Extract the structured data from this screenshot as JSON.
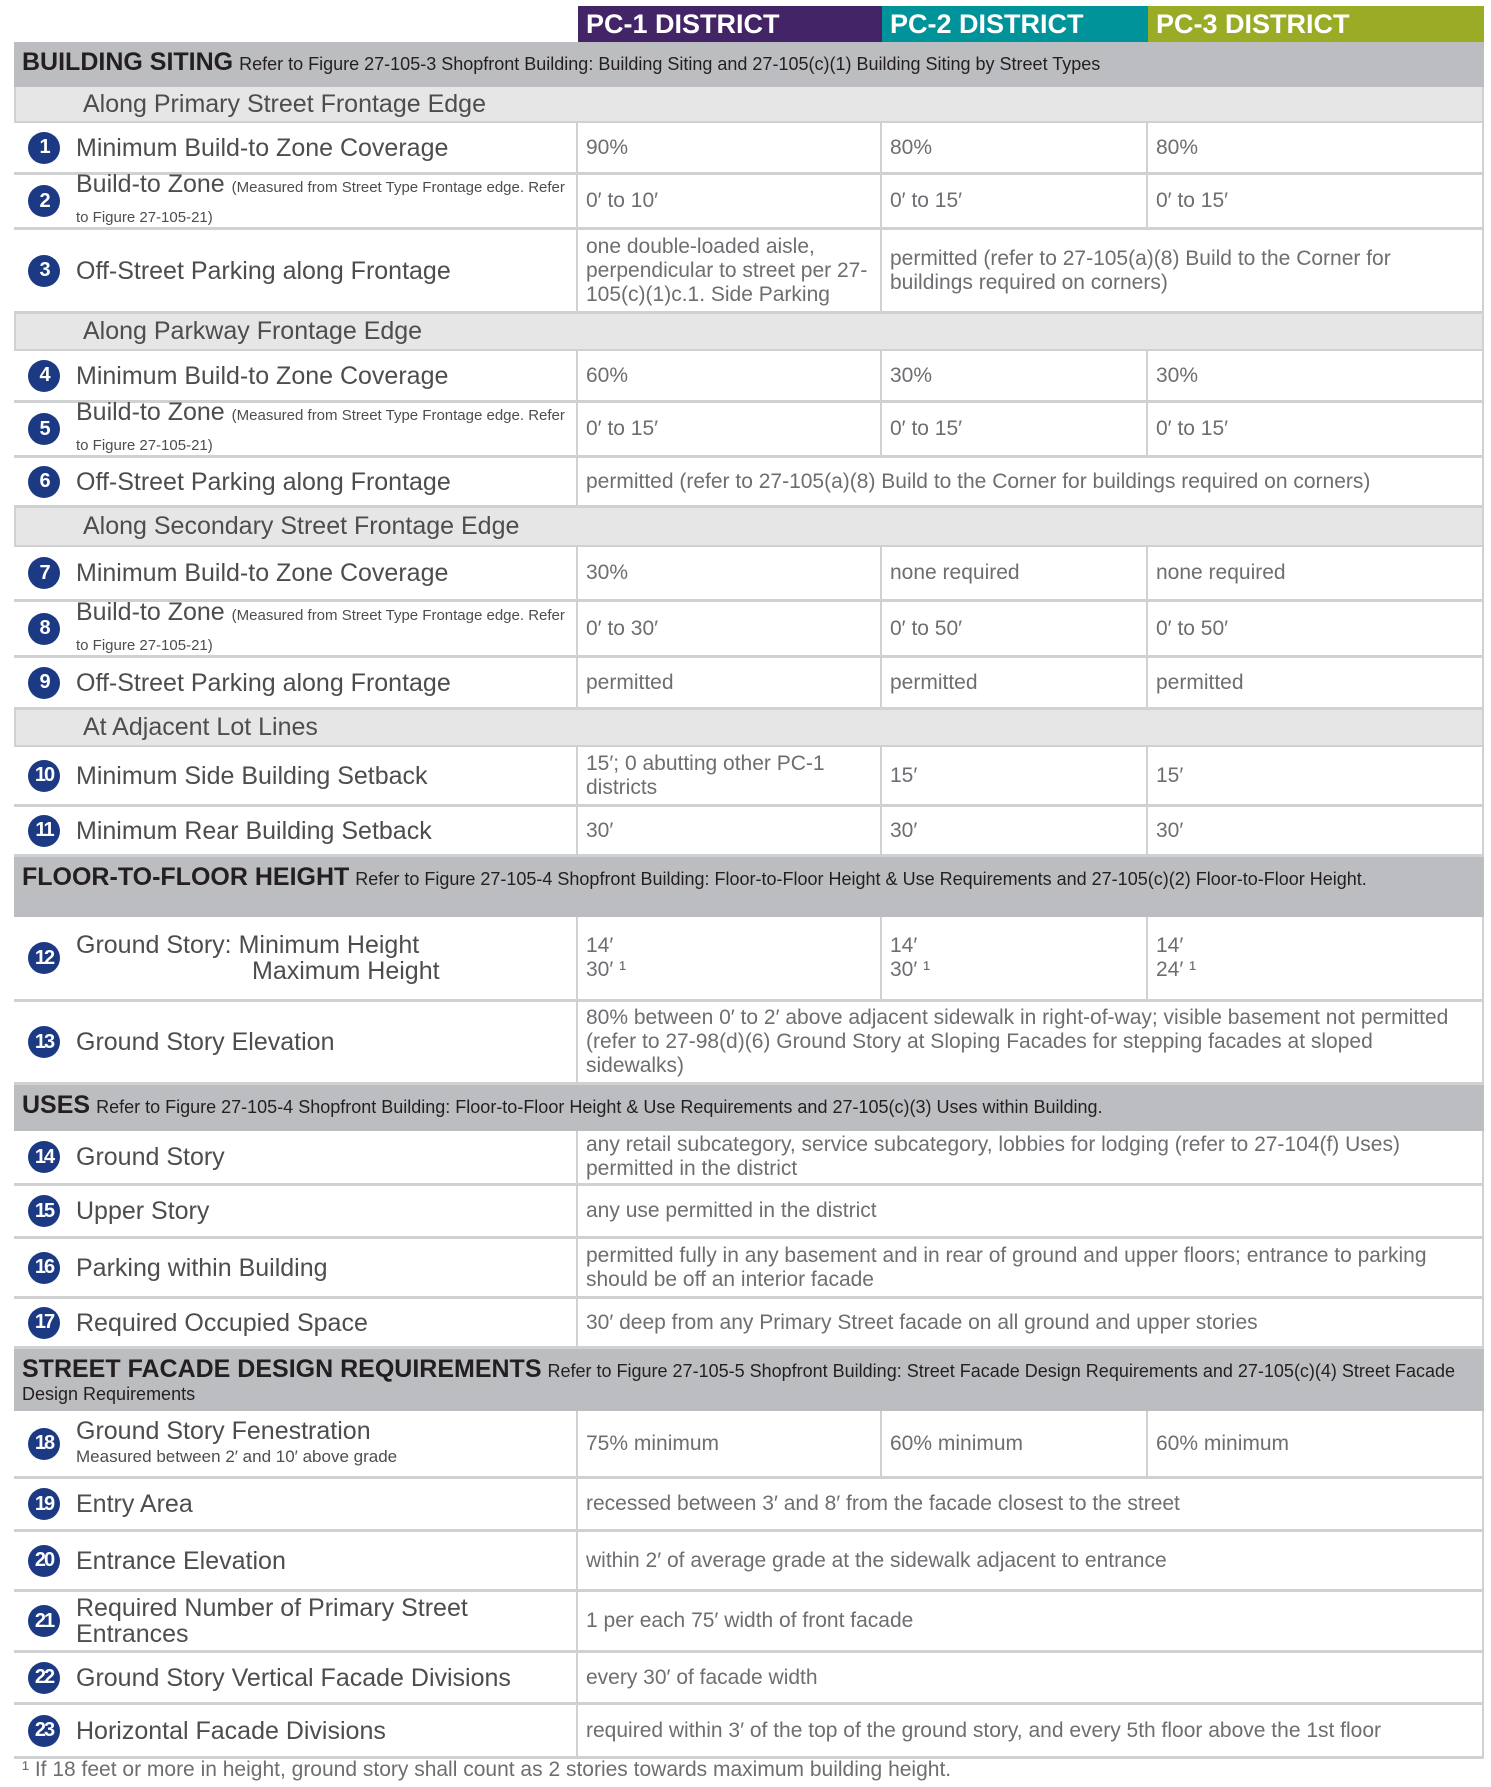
{
  "districts": [
    {
      "label": "PC-1 DISTRICT",
      "color": "#432466"
    },
    {
      "label": "PC-2 DISTRICT",
      "color": "#00939a"
    },
    {
      "label": "PC-3 DISTRICT",
      "color": "#9aab25"
    }
  ],
  "rows": [
    {
      "type": "section",
      "title": "BUILDING SITING",
      "ref": "Refer to Figure 27-105-3 Shopfront Building: Building Siting and 27-105(c)(1) Building Siting by Street Types"
    },
    {
      "type": "sub",
      "label": "Along Primary Street Frontage Edge"
    },
    {
      "type": "row",
      "num": "1",
      "label": "Minimum Build-to Zone Coverage",
      "values": [
        "90%",
        "80%",
        "80%"
      ]
    },
    {
      "type": "row",
      "num": "2",
      "label": "Build-to Zone",
      "note": "(Measured from Street Type Frontage edge. Refer to Figure 27-105-21)",
      "values": [
        "0′ to 10′",
        "0′ to 15′",
        "0′ to 15′"
      ]
    },
    {
      "type": "row",
      "num": "3",
      "label": "Off-Street Parking along Frontage",
      "values": [
        "one double-loaded aisle, perpendicular to street per 27-105(c)(1)c.1. Side Parking",
        "permitted (refer to 27-105(a)(8) Build to the Corner for buildings required on corners)"
      ]
    },
    {
      "type": "sub",
      "label": "Along Parkway Frontage Edge"
    },
    {
      "type": "row",
      "num": "4",
      "label": "Minimum Build-to Zone Coverage",
      "values": [
        "60%",
        "30%",
        "30%"
      ]
    },
    {
      "type": "row",
      "num": "5",
      "label": "Build-to Zone",
      "note": "(Measured from Street Type Frontage edge. Refer to Figure 27-105-21)",
      "values": [
        "0′ to 15′",
        "0′ to 15′",
        "0′ to 15′"
      ]
    },
    {
      "type": "row",
      "num": "6",
      "label": "Off-Street Parking along Frontage",
      "values": [
        "permitted (refer to 27-105(a)(8) Build to the Corner for buildings required on corners)"
      ]
    },
    {
      "type": "sub",
      "label": "Along Secondary Street Frontage Edge"
    },
    {
      "type": "row",
      "num": "7",
      "label": "Minimum Build-to Zone Coverage",
      "values": [
        "30%",
        "none required",
        "none required"
      ]
    },
    {
      "type": "row",
      "num": "8",
      "label": "Build-to Zone",
      "note": "(Measured from Street Type Frontage edge. Refer to Figure 27-105-21)",
      "values": [
        "0′ to 30′",
        "0′ to 50′",
        "0′ to 50′"
      ]
    },
    {
      "type": "row",
      "num": "9",
      "label": "Off-Street Parking along Frontage",
      "values": [
        "permitted",
        "permitted",
        "permitted"
      ]
    },
    {
      "type": "sub",
      "label": "At Adjacent Lot Lines"
    },
    {
      "type": "row",
      "num": "10",
      "label": "Minimum Side Building Setback",
      "values": [
        "15′; 0 abutting other PC-1 districts",
        "15′",
        "15′"
      ]
    },
    {
      "type": "row",
      "num": "11",
      "label": "Minimum Rear Building Setback",
      "values": [
        "30′",
        "30′",
        "30′"
      ]
    },
    {
      "type": "section",
      "title": "FLOOR-TO-FLOOR HEIGHT",
      "ref": "Refer to Figure 27-105-4 Shopfront Building: Floor-to-Floor Height & Use Requirements and 27-105(c)(2) Floor-to-Floor Height."
    },
    {
      "type": "row",
      "num": "12",
      "label": "Ground Story: Minimum Height",
      "label2": "Maximum Height",
      "values": [
        "14′\n30′ ¹",
        "14′\n30′ ¹",
        "14′\n24′ ¹"
      ]
    },
    {
      "type": "row",
      "num": "13",
      "label": "Ground Story Elevation",
      "values": [
        "80% between 0′ to 2′ above adjacent sidewalk in right-of-way; visible basement not permitted (refer to 27-98(d)(6) Ground Story at Sloping Facades for stepping facades at sloped sidewalks)"
      ]
    },
    {
      "type": "section",
      "title": "USES",
      "ref": "Refer to Figure 27-105-4 Shopfront Building: Floor-to-Floor Height & Use Requirements and 27-105(c)(3) Uses within Building."
    },
    {
      "type": "row",
      "num": "14",
      "label": "Ground Story",
      "values": [
        "any retail subcategory, service subcategory, lobbies for lodging (refer to 27-104(f) Uses) permitted in the district"
      ]
    },
    {
      "type": "row",
      "num": "15",
      "label": "Upper Story",
      "values": [
        "any use permitted in the district"
      ]
    },
    {
      "type": "row",
      "num": "16",
      "label": "Parking within Building",
      "values": [
        "permitted fully in any basement and in rear of ground and upper floors; entrance to parking should be off an interior facade"
      ]
    },
    {
      "type": "row",
      "num": "17",
      "label": "Required Occupied Space",
      "values": [
        "30′ deep from any Primary Street facade on all ground and upper stories"
      ]
    },
    {
      "type": "section",
      "title": "STREET FACADE DESIGN REQUIREMENTS",
      "ref": "Refer to Figure 27-105-5 Shopfront Building: Street Facade Design Requirements and 27-105(c)(4) Street Facade Design Requirements"
    },
    {
      "type": "row",
      "num": "18",
      "label": "Ground Story Fenestration",
      "sublabel": "Measured between 2′ and 10′ above grade",
      "values": [
        "75% minimum",
        "60% minimum",
        "60% minimum"
      ]
    },
    {
      "type": "row",
      "num": "19",
      "label": "Entry Area",
      "values": [
        "recessed between 3′ and 8′ from the facade closest to the street"
      ]
    },
    {
      "type": "row",
      "num": "20",
      "label": "Entrance Elevation",
      "values": [
        "within 2′ of average grade at the sidewalk adjacent to entrance"
      ]
    },
    {
      "type": "row",
      "num": "21",
      "label": "Required Number of Primary Street Entrances",
      "values": [
        "1 per each 75′ width of front facade"
      ]
    },
    {
      "type": "row",
      "num": "22",
      "label": "Ground Story Vertical Facade Divisions",
      "values": [
        "every 30′ of facade width"
      ]
    },
    {
      "type": "row",
      "num": "23",
      "label": "Horizontal Facade Divisions",
      "values": [
        "required within 3′ of the top of the ground story, and every 5th floor above the 1st floor"
      ]
    }
  ],
  "footnote": "¹ If 18 feet or more in height, ground story shall count as 2 stories towards maximum building height."
}
